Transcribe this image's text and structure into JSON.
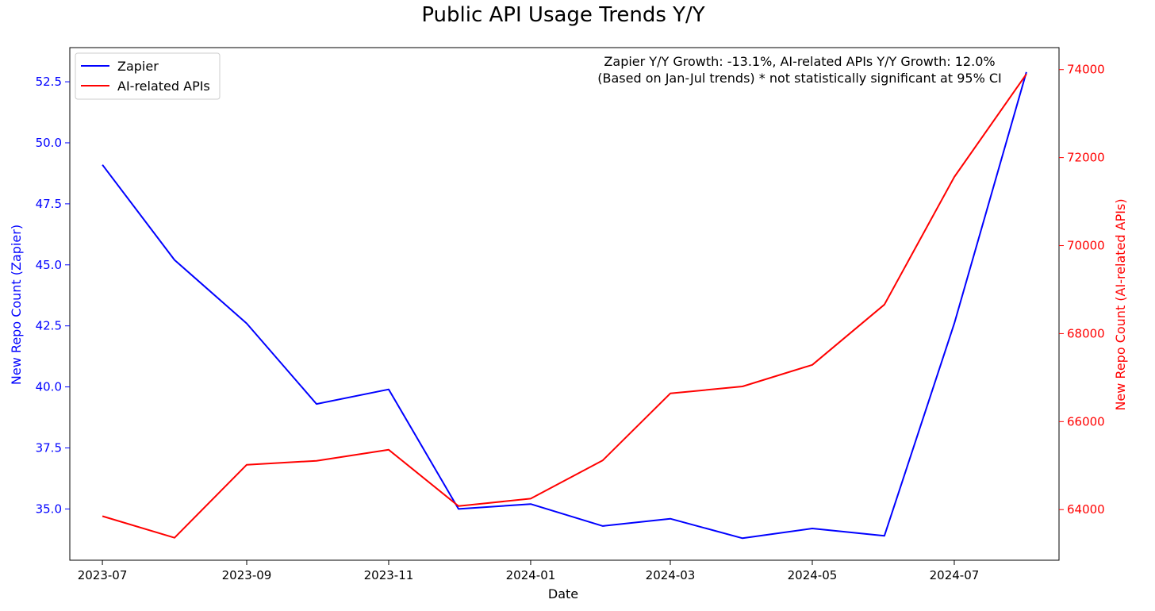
{
  "chart_data": {
    "type": "line",
    "title": "Public API Usage Trends Y/Y",
    "xlabel": "Date",
    "ylabel_left": "New Repo Count (Zapier)",
    "ylabel_right": "New Repo Count (AI-related APIs)",
    "x": [
      "2023-07",
      "2023-08",
      "2023-09",
      "2023-10",
      "2023-11",
      "2023-12",
      "2024-01",
      "2024-02",
      "2024-03",
      "2024-04",
      "2024-05",
      "2024-06",
      "2024-07",
      "2024-08"
    ],
    "x_ticks": [
      "2023-07",
      "2023-09",
      "2023-11",
      "2024-01",
      "2024-03",
      "2024-05",
      "2024-07"
    ],
    "x_range": [
      "2023-06-17",
      "2024-08-15"
    ],
    "y_left_range": [
      32.9,
      53.9
    ],
    "y_left_ticks": [
      35.0,
      37.5,
      40.0,
      42.5,
      45.0,
      47.5,
      50.0,
      52.5
    ],
    "y_left_tick_labels": [
      "35.0",
      "37.5",
      "40.0",
      "42.5",
      "45.0",
      "47.5",
      "50.0",
      "52.5"
    ],
    "y_right_range": [
      62850,
      74500
    ],
    "y_right_ticks": [
      64000,
      66000,
      68000,
      70000,
      72000,
      74000
    ],
    "y_right_tick_labels": [
      "64000",
      "66000",
      "68000",
      "70000",
      "72000",
      "74000"
    ],
    "series": [
      {
        "name": "Zapier",
        "axis": "left",
        "color": "#0000ff",
        "values": [
          49.1,
          45.2,
          42.6,
          39.3,
          39.9,
          35.0,
          35.2,
          34.3,
          34.6,
          33.8,
          34.2,
          33.9,
          42.6,
          52.9
        ]
      },
      {
        "name": "AI-related APIs",
        "axis": "right",
        "color": "#ff0000",
        "values": [
          63850,
          63360,
          65020,
          65110,
          65360,
          64080,
          64250,
          65120,
          66640,
          66800,
          67290,
          68660,
          71560,
          73900
        ]
      }
    ],
    "annotation_lines": [
      "Zapier Y/Y Growth: -13.1%, AI-related APIs Y/Y Growth: 12.0%",
      "(Based on Jan-Jul trends) * not statistically significant at 95% CI"
    ],
    "legend_position": "top-left",
    "grid": false,
    "left_axis_color": "#0000ff",
    "right_axis_color": "#ff0000"
  }
}
